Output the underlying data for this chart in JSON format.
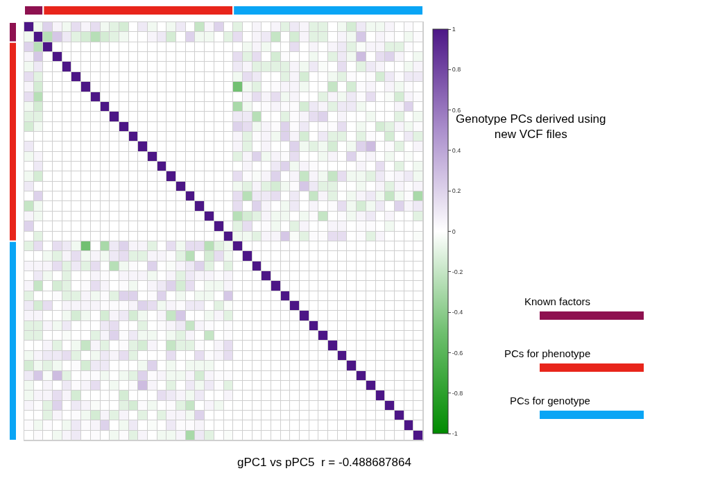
{
  "chart_data": {
    "type": "heatmap",
    "title": "Genotype PCs derived using new VCF files",
    "annotations": [
      "gPC1 vs pPC5  r = -0.488687864",
      "Known factors",
      "PCs for phenotype",
      "PCs for genotype"
    ],
    "categories": [
      null,
      null,
      null,
      null,
      null,
      null,
      null,
      null,
      null,
      null,
      null,
      null,
      null,
      null,
      null,
      null,
      null,
      null,
      null,
      null,
      null,
      null,
      null,
      null,
      null,
      null,
      null,
      null,
      null,
      null,
      null,
      null,
      null,
      null,
      null,
      null,
      null,
      null,
      null,
      null,
      null,
      null
    ],
    "y_categories": [
      null,
      null,
      null,
      null,
      null,
      null,
      null,
      null,
      null,
      null,
      null,
      null,
      null,
      null,
      null,
      null,
      null,
      null,
      null,
      null,
      null,
      null,
      null,
      null,
      null,
      null,
      null,
      null,
      null,
      null,
      null,
      null,
      null,
      null,
      null,
      null,
      null,
      null,
      null,
      null,
      null,
      null
    ],
    "cells": [
      [
        1,
        -0.05,
        0.2,
        0.05,
        -0.05,
        0.15,
        0.05,
        0.15,
        -0.05,
        -0.1,
        -0.15,
        0,
        0.1,
        -0.05,
        0,
        -0.05,
        0.1,
        0,
        -0.2,
        0.05,
        0.2,
        0,
        -0.1,
        0,
        0.05,
        0,
        0.05,
        -0.1,
        0.1,
        0.05,
        -0.1,
        -0.1,
        0,
        -0.05,
        -0.15,
        0.1,
        -0.05,
        -0.05,
        0.05,
        0,
        0.02,
        0
      ],
      [
        -0.05,
        1,
        -0.25,
        0.25,
        0.1,
        -0.1,
        -0.15,
        -0.25,
        -0.15,
        -0.1,
        -0.05,
        0,
        0,
        0.05,
        0.1,
        -0.15,
        0,
        0.2,
        -0.05,
        -0.05,
        0,
        -0.1,
        0.15,
        0,
        0.05,
        0.1,
        -0.2,
        0,
        -0.15,
        0.05,
        -0.1,
        -0.1,
        0,
        0.05,
        -0.05,
        0.25,
        0,
        0.05,
        0.02,
        0,
        -0.05,
        0.02
      ],
      [
        0.2,
        -0.25,
        1,
        0,
        0,
        0,
        0,
        0,
        0,
        0,
        0,
        0,
        0,
        0,
        0,
        0,
        0,
        0,
        0,
        0,
        0,
        0,
        0,
        -0.05,
        0.05,
        -0.05,
        0,
        0,
        0.15,
        0,
        0.05,
        0,
        0.05,
        0.1,
        -0.1,
        -0.02,
        0.05,
        0.05,
        -0.1,
        -0.1,
        0.02,
        0
      ],
      [
        0.05,
        0.25,
        0,
        1,
        0,
        0,
        0,
        0,
        0,
        0,
        0,
        0,
        0,
        0,
        0,
        0,
        0,
        0,
        0,
        0,
        0,
        0,
        0.15,
        -0.1,
        0.15,
        0,
        -0.15,
        0.02,
        0,
        0,
        -0.05,
        0,
        -0.1,
        0.1,
        -0.05,
        0.3,
        0,
        0.15,
        0.2,
        0.05,
        0,
        -0.05
      ],
      [
        -0.05,
        0.1,
        0,
        0,
        1,
        0,
        0,
        0,
        0,
        0,
        0,
        0,
        0,
        0,
        0,
        0,
        0,
        0,
        0,
        0,
        0,
        0,
        0.1,
        0.05,
        -0.1,
        -0.1,
        -0.1,
        -0.1,
        0.05,
        -0.05,
        0.1,
        -0.02,
        0,
        0.15,
        0,
        -0.1,
        0.1,
        0.05,
        0,
        0,
        -0.05,
        0.05
      ],
      [
        0.15,
        -0.1,
        0,
        0,
        0,
        1,
        0,
        0,
        0,
        0,
        0,
        0,
        0,
        0,
        0,
        0,
        0,
        0,
        0,
        0,
        0,
        0,
        -0.05,
        0.15,
        0.1,
        0,
        0,
        -0.1,
        0.05,
        -0.15,
        0,
        0,
        -0.05,
        -0.1,
        0.02,
        0,
        0.02,
        -0.15,
        0.1,
        0.02,
        0.1,
        0.1
      ],
      [
        0.05,
        -0.15,
        0,
        0,
        0,
        0,
        1,
        0,
        0,
        0,
        0,
        0,
        0,
        0,
        0,
        0,
        0,
        0,
        0,
        0,
        0,
        0,
        -0.49,
        -0.05,
        -0.1,
        0,
        0.02,
        0.05,
        0.05,
        -0.05,
        0,
        0,
        -0.2,
        0,
        -0.15,
        0.02,
        0.05,
        0,
        0.05,
        -0.05,
        0.02,
        0
      ],
      [
        0.15,
        -0.25,
        0,
        0,
        0,
        0,
        0,
        1,
        0,
        0,
        0,
        0,
        0,
        0,
        0,
        0,
        0,
        0,
        0,
        0,
        0,
        0,
        0,
        0.05,
        0.15,
        0.05,
        0.15,
        -0.05,
        0.05,
        0,
        0,
        -0.1,
        0.05,
        -0.05,
        0.1,
        0.02,
        0.15,
        0,
        -0.02,
        -0.15,
        0.05,
        0.02
      ],
      [
        -0.05,
        -0.15,
        0,
        0,
        0,
        0,
        0,
        0,
        1,
        0,
        0,
        0,
        0,
        0,
        0,
        0,
        0,
        0,
        0,
        0,
        0,
        0,
        -0.3,
        -0.05,
        0,
        0.02,
        0.05,
        0.02,
        0.02,
        -0.15,
        0.1,
        0.05,
        -0.1,
        0.1,
        0.1,
        -0.05,
        0,
        0,
        0,
        0.05,
        0.2,
        0
      ],
      [
        -0.1,
        -0.1,
        0,
        0,
        0,
        0,
        0,
        0,
        0,
        1,
        0,
        0,
        0,
        0,
        0,
        0,
        0,
        0,
        0,
        0,
        0,
        0,
        0.1,
        0.1,
        -0.25,
        0,
        0,
        -0.1,
        0.02,
        0.05,
        0.15,
        0.2,
        0,
        0.05,
        0,
        0,
        -0.05,
        0,
        0,
        -0.1,
        0,
        -0.05
      ],
      [
        -0.15,
        -0.05,
        0,
        0,
        0,
        0,
        0,
        0,
        0,
        0,
        1,
        0,
        0,
        0,
        0,
        0,
        0,
        0,
        0,
        0,
        0,
        0,
        0.2,
        0.15,
        -0.05,
        0.05,
        0.02,
        0.2,
        0.02,
        0.1,
        0,
        0.02,
        0.02,
        0.15,
        0,
        -0.05,
        0,
        -0.15,
        -0.1,
        0.05,
        -0.05,
        0.02
      ],
      [
        0,
        0,
        0,
        0,
        0,
        0,
        0,
        0,
        0,
        0,
        0,
        1,
        0,
        0,
        0,
        0,
        0,
        0,
        0,
        0,
        0,
        0,
        0.05,
        -0.1,
        0.02,
        0.05,
        -0.05,
        0.2,
        0.05,
        -0.15,
        0,
        0.1,
        -0.1,
        -0.1,
        0,
        -0.1,
        0.02,
        0,
        -0.15,
        0,
        0.1,
        -0.1
      ],
      [
        0.1,
        0,
        0,
        0,
        0,
        0,
        0,
        0,
        0,
        0,
        0,
        0,
        1,
        0,
        0,
        0,
        0,
        0,
        0,
        0,
        0,
        0,
        0.05,
        -0.1,
        0,
        0.05,
        0,
        0,
        0.2,
        -0.05,
        -0.1,
        -0.05,
        -0.15,
        0,
        -0.05,
        0.2,
        0.3,
        0,
        0.02,
        -0.1,
        0,
        0.05
      ],
      [
        -0.05,
        0.05,
        0,
        0,
        0,
        0,
        0,
        0,
        0,
        0,
        0,
        0,
        0,
        1,
        0,
        0,
        0,
        0,
        0,
        0,
        0,
        0,
        -0.1,
        0.05,
        0.2,
        -0.05,
        0.05,
        0.02,
        0.15,
        0,
        0,
        -0.05,
        0.05,
        0,
        0.2,
        0.02,
        0.05,
        0,
        -0.05,
        0,
        -0.02,
        0
      ],
      [
        0,
        0.1,
        0,
        0,
        0,
        0,
        0,
        0,
        0,
        0,
        0,
        0,
        0,
        0,
        1,
        0,
        0,
        0,
        0,
        0,
        0,
        0,
        0,
        0.05,
        0,
        0,
        0.1,
        0.2,
        -0.05,
        0.05,
        0.02,
        0,
        0,
        0,
        0,
        0.05,
        0,
        0.15,
        0,
        -0.1,
        0,
        -0.05
      ],
      [
        -0.05,
        -0.15,
        0,
        0,
        0,
        0,
        0,
        0,
        0,
        0,
        0,
        0,
        0,
        0,
        0,
        1,
        0,
        0,
        0,
        0,
        0,
        0,
        0.15,
        0.02,
        -0.02,
        0.05,
        0.2,
        0,
        0.05,
        -0.2,
        0.05,
        -0.05,
        -0.2,
        0.15,
        -0.05,
        -0.05,
        -0.1,
        0.1,
        0.02,
        0.05,
        0.1,
        -0.05
      ],
      [
        0.1,
        0,
        0,
        0,
        0,
        0,
        0,
        0,
        0,
        0,
        0,
        0,
        0,
        0,
        0,
        0,
        1,
        0,
        0,
        0,
        0,
        0,
        -0.05,
        -0.1,
        0.05,
        -0.1,
        -0.15,
        -0.05,
        0.02,
        0.25,
        0.1,
        -0.1,
        -0.1,
        0,
        0,
        -0.05,
        0,
        0.05,
        -0.1,
        0.05,
        0.02,
        0.05
      ],
      [
        0,
        0.2,
        0,
        0,
        0,
        0,
        0,
        0,
        0,
        0,
        0,
        0,
        0,
        0,
        0,
        0,
        0,
        1,
        0,
        0,
        0,
        0,
        0.15,
        -0.25,
        0.1,
        0.1,
        0.15,
        0,
        0.1,
        0,
        -0.2,
        0.05,
        -0.1,
        0,
        -0.05,
        0.05,
        0.1,
        -0.05,
        -0.2,
        -0.05,
        0.02,
        -0.3
      ],
      [
        -0.2,
        -0.05,
        0,
        0,
        0,
        0,
        0,
        0,
        0,
        0,
        0,
        0,
        0,
        0,
        0,
        0,
        0,
        0,
        1,
        0,
        0,
        0,
        0.15,
        0,
        0.2,
        0.05,
        0,
        -0.05,
        0.1,
        0,
        0.05,
        0,
        0.02,
        0.15,
        -0.05,
        -0.15,
        -0.05,
        0.1,
        0,
        0.2,
        0.05,
        0.1
      ],
      [
        0.05,
        -0.05,
        0,
        0,
        0,
        0,
        0,
        0,
        0,
        0,
        0,
        0,
        0,
        0,
        0,
        0,
        0,
        0,
        0,
        1,
        0,
        0,
        -0.25,
        -0.15,
        -0.1,
        0.05,
        -0.05,
        -0.05,
        0,
        -0.05,
        0.02,
        -0.2,
        0,
        0.02,
        -0.05,
        0.05,
        0.1,
        0,
        0.05,
        0,
        0,
        -0.1
      ],
      [
        0.2,
        0,
        0,
        0,
        0,
        0,
        0,
        0,
        0,
        0,
        0,
        0,
        0,
        0,
        0,
        0,
        0,
        0,
        0,
        0,
        1,
        0,
        -0.1,
        0.15,
        0,
        0.02,
        -0.05,
        0,
        -0.1,
        0.05,
        0,
        0,
        0.05,
        0.05,
        0,
        0.02,
        0.02,
        0,
        -0.05,
        0,
        0,
        0
      ],
      [
        0,
        -0.1,
        0,
        0,
        0,
        0,
        0,
        0,
        0,
        0,
        0,
        0,
        0,
        0,
        0,
        0,
        0,
        0,
        0,
        0,
        0,
        1,
        -0.05,
        -0.05,
        -0.1,
        0.05,
        0.05,
        0.25,
        -0.02,
        -0.1,
        0.02,
        0.02,
        0.15,
        0.15,
        0,
        0.02,
        -0.1,
        0.05,
        0,
        0,
        0,
        -0.02
      ],
      [
        -0.1,
        0.15,
        0,
        0.15,
        0.1,
        -0.05,
        -0.49,
        0,
        -0.3,
        0.1,
        0.2,
        0.05,
        0.05,
        -0.1,
        0,
        0.15,
        -0.05,
        0.15,
        0.15,
        -0.25,
        -0.1,
        -0.05,
        1,
        0,
        0,
        0,
        0,
        0,
        0,
        0,
        0,
        0,
        0,
        0,
        0,
        0,
        0,
        0,
        0,
        0,
        0,
        0
      ],
      [
        0,
        0,
        -0.05,
        -0.1,
        0.05,
        0.15,
        -0.05,
        0.05,
        -0.05,
        0.1,
        0.15,
        -0.1,
        -0.1,
        0.05,
        0.05,
        0.02,
        -0.1,
        -0.25,
        0,
        -0.15,
        0.15,
        -0.05,
        0,
        1,
        0,
        0,
        0,
        0,
        0,
        0,
        0,
        0,
        0,
        0,
        0,
        0,
        0,
        0,
        0,
        0,
        0,
        0
      ],
      [
        0.05,
        0.05,
        0.05,
        0.15,
        -0.1,
        0.1,
        -0.1,
        0.15,
        0,
        -0.25,
        -0.05,
        0.02,
        0,
        0.2,
        0,
        -0.02,
        0.05,
        0.1,
        0.2,
        -0.1,
        0,
        -0.1,
        0,
        0,
        1,
        0,
        0,
        0,
        0,
        0,
        0,
        0,
        0,
        0,
        0,
        0,
        0,
        0,
        0,
        0,
        0,
        0
      ],
      [
        0,
        0.1,
        -0.05,
        0,
        -0.1,
        0,
        0,
        0.05,
        0.02,
        0,
        0.05,
        0.05,
        0.05,
        -0.05,
        0,
        0.05,
        -0.1,
        0.1,
        0.05,
        0.05,
        0.02,
        0.05,
        0,
        0,
        0,
        1,
        0,
        0,
        0,
        0,
        0,
        0,
        0,
        0,
        0,
        0,
        0,
        0,
        0,
        0,
        0,
        0
      ],
      [
        0.05,
        -0.2,
        0,
        -0.15,
        -0.1,
        0,
        0.02,
        0.15,
        0.05,
        0,
        0.02,
        -0.05,
        0,
        0.05,
        0.1,
        0.2,
        -0.15,
        0.15,
        0,
        -0.05,
        -0.05,
        0.05,
        0,
        0,
        0,
        0,
        1,
        0,
        0,
        0,
        0,
        0,
        0,
        0,
        0,
        0,
        0,
        0,
        0,
        0,
        0,
        0
      ],
      [
        -0.1,
        0,
        0,
        0.02,
        -0.1,
        -0.1,
        0.05,
        -0.05,
        0.02,
        -0.1,
        0.2,
        0.2,
        0,
        0.02,
        0.2,
        0,
        -0.05,
        0,
        -0.05,
        -0.05,
        0,
        0.25,
        0,
        0,
        0,
        0,
        0,
        1,
        0,
        0,
        0,
        0,
        0,
        0,
        0,
        0,
        0,
        0,
        0,
        0,
        0,
        0
      ],
      [
        0.1,
        -0.15,
        0.15,
        0,
        0.05,
        0.05,
        0.05,
        0.05,
        0.02,
        0.02,
        0.02,
        0.05,
        0.2,
        0.15,
        -0.05,
        0.05,
        0.02,
        0.1,
        0.1,
        0,
        -0.1,
        -0.02,
        0,
        0,
        0,
        0,
        0,
        0,
        1,
        0,
        0,
        0,
        0,
        0,
        0,
        0,
        0,
        0,
        0,
        0,
        0,
        0
      ],
      [
        0.05,
        0.05,
        0,
        0,
        -0.05,
        -0.15,
        -0.05,
        0,
        -0.15,
        0.05,
        0.1,
        -0.15,
        -0.05,
        0,
        0.05,
        -0.2,
        0.25,
        0,
        0,
        -0.05,
        0.05,
        -0.1,
        0,
        0,
        0,
        0,
        0,
        0,
        0,
        1,
        0,
        0,
        0,
        0,
        0,
        0,
        0,
        0,
        0,
        0,
        0,
        0
      ],
      [
        -0.1,
        -0.1,
        0.05,
        -0.05,
        0.1,
        0,
        0,
        0,
        0.1,
        0.15,
        0,
        0,
        -0.1,
        0,
        0.02,
        0.05,
        0.1,
        -0.2,
        0.05,
        0.02,
        0,
        0.02,
        0,
        0,
        0,
        0,
        0,
        0,
        0,
        0,
        1,
        0,
        0,
        0,
        0,
        0,
        0,
        0,
        0,
        0,
        0,
        0
      ],
      [
        -0.1,
        -0.1,
        0,
        0,
        -0.02,
        0,
        0,
        -0.1,
        0.05,
        0.2,
        0.02,
        0.1,
        -0.05,
        -0.05,
        0,
        -0.05,
        -0.1,
        0.05,
        0,
        -0.2,
        0,
        0.02,
        0,
        0,
        0,
        0,
        0,
        0,
        0,
        0,
        0,
        1,
        0,
        0,
        0,
        0,
        0,
        0,
        0,
        0,
        0,
        0
      ],
      [
        0,
        0,
        0.05,
        -0.1,
        0,
        -0.05,
        -0.2,
        0.05,
        -0.1,
        0,
        0.02,
        -0.1,
        -0.15,
        0.05,
        0,
        -0.2,
        -0.1,
        -0.1,
        0.02,
        0,
        0.05,
        0.15,
        0,
        0,
        0,
        0,
        0,
        0,
        0,
        0,
        0,
        0,
        1,
        0,
        0,
        0,
        0,
        0,
        0,
        0,
        0,
        0
      ],
      [
        -0.05,
        0.05,
        0.1,
        0.1,
        0.15,
        -0.1,
        0,
        -0.05,
        0.1,
        0.05,
        0.15,
        -0.1,
        0,
        0,
        0,
        0.15,
        0,
        0,
        0.15,
        0.02,
        0.05,
        0.15,
        0,
        0,
        0,
        0,
        0,
        0,
        0,
        0,
        0,
        0,
        0,
        1,
        0,
        0,
        0,
        0,
        0,
        0,
        0,
        0
      ],
      [
        -0.15,
        -0.05,
        -0.1,
        -0.05,
        0,
        0.02,
        -0.15,
        0.1,
        0.1,
        0,
        0,
        0,
        -0.05,
        0.2,
        0,
        -0.05,
        0,
        -0.05,
        -0.05,
        -0.05,
        0,
        0,
        0,
        0,
        0,
        0,
        0,
        0,
        0,
        0,
        0,
        0,
        0,
        0,
        1,
        0,
        0,
        0,
        0,
        0,
        0,
        0
      ],
      [
        0.1,
        0.25,
        -0.02,
        0.3,
        -0.1,
        0,
        0.02,
        0.02,
        -0.05,
        0,
        -0.05,
        -0.1,
        0.2,
        0.02,
        0.05,
        -0.05,
        -0.05,
        0.05,
        -0.15,
        0.05,
        0.02,
        0.02,
        0,
        0,
        0,
        0,
        0,
        0,
        0,
        0,
        0,
        0,
        0,
        0,
        0,
        1,
        0,
        0,
        0,
        0,
        0,
        0
      ],
      [
        -0.05,
        0,
        0.05,
        0,
        0.1,
        0.02,
        0.05,
        0.15,
        0,
        -0.05,
        0,
        0.02,
        0.3,
        0.05,
        0,
        -0.1,
        0,
        0.1,
        -0.05,
        0.1,
        0.02,
        -0.1,
        0,
        0,
        0,
        0,
        0,
        0,
        0,
        0,
        0,
        0,
        0,
        0,
        0,
        0,
        1,
        0,
        0,
        0,
        0,
        0
      ],
      [
        -0.05,
        0.05,
        0.05,
        0.15,
        0.05,
        -0.15,
        0,
        0,
        0,
        0,
        -0.15,
        0,
        0,
        0,
        0.15,
        0.1,
        0.05,
        -0.05,
        0.1,
        0,
        0,
        0.05,
        0,
        0,
        0,
        0,
        0,
        0,
        0,
        0,
        0,
        0,
        0,
        0,
        0,
        0,
        0,
        1,
        0,
        0,
        0,
        0
      ],
      [
        0.05,
        0.02,
        -0.1,
        0.2,
        0,
        0.1,
        0.05,
        -0.02,
        0,
        0,
        -0.1,
        -0.15,
        0.02,
        -0.05,
        0,
        0.02,
        -0.1,
        -0.2,
        0,
        0.05,
        -0.05,
        0,
        0,
        0,
        0,
        0,
        0,
        0,
        0,
        0,
        0,
        0,
        0,
        0,
        0,
        0,
        0,
        0,
        1,
        0,
        0,
        0
      ],
      [
        0,
        0,
        -0.1,
        0.05,
        0,
        0.02,
        -0.05,
        -0.15,
        0.05,
        -0.1,
        0.05,
        0,
        -0.1,
        0,
        -0.1,
        0.05,
        0.05,
        -0.05,
        0.2,
        0,
        0,
        0,
        0,
        0,
        0,
        0,
        0,
        0,
        0,
        0,
        0,
        0,
        0,
        0,
        0,
        0,
        0,
        0,
        0,
        1,
        0,
        0
      ],
      [
        0.02,
        -0.05,
        0.02,
        0,
        -0.05,
        0.1,
        0.02,
        0.05,
        0.2,
        0,
        -0.05,
        0.1,
        0,
        -0.02,
        0,
        0.1,
        0.02,
        0.02,
        0.05,
        0,
        0,
        0,
        0,
        0,
        0,
        0,
        0,
        0,
        0,
        0,
        0,
        0,
        0,
        0,
        0,
        0,
        0,
        0,
        0,
        0,
        1,
        0
      ],
      [
        0,
        0.02,
        0,
        -0.05,
        0.05,
        0.1,
        0,
        0.02,
        0,
        -0.05,
        0.02,
        -0.1,
        0.05,
        0,
        -0.05,
        -0.05,
        0.05,
        -0.3,
        0.1,
        -0.1,
        0,
        -0.02,
        0,
        0,
        0,
        0,
        0,
        0,
        0,
        0,
        0,
        0,
        0,
        0,
        0,
        0,
        0,
        0,
        0,
        0,
        0,
        1
      ]
    ],
    "clim": [
      -1,
      1
    ],
    "cticks": [
      -1,
      -0.8,
      -0.6,
      -0.4,
      -0.2,
      0,
      0.2,
      0.4,
      0.6,
      0.8,
      1
    ]
  }
}
